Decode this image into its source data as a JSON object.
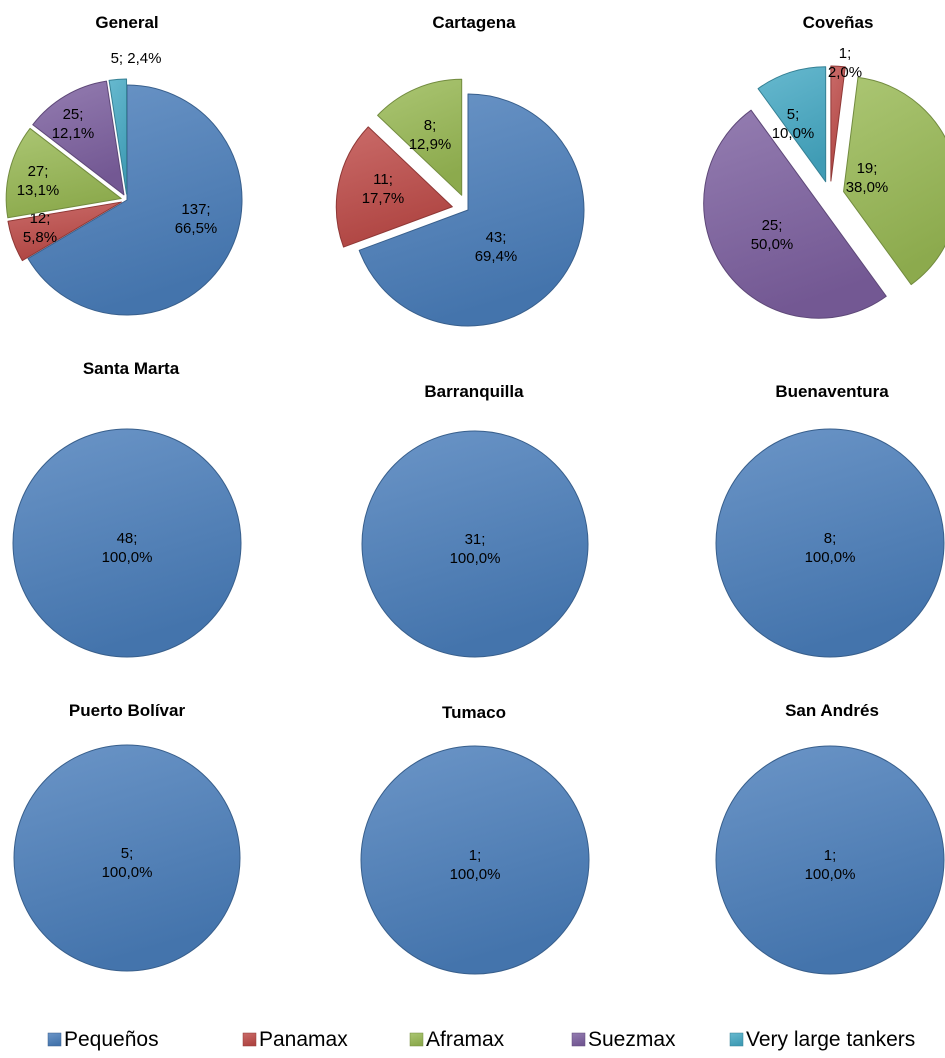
{
  "colors": {
    "Pequeños": "#4a7ebb",
    "Panamax": "#be4b48",
    "Aframax": "#98b954",
    "Suezmax": "#7d60a0",
    "Very large tankers": "#46aac5"
  },
  "legend": [
    "Pequeños",
    "Panamax",
    "Aframax",
    "Suezmax",
    "Very large tankers"
  ],
  "chart_data": [
    {
      "type": "pie",
      "title": "General",
      "slices": [
        {
          "category": "Pequeños",
          "value": 137,
          "label_value": "137;",
          "label_pct": "66,5%"
        },
        {
          "category": "Panamax",
          "value": 12,
          "label_value": "12;",
          "label_pct": "5,8%"
        },
        {
          "category": "Aframax",
          "value": 27,
          "label_value": "27;",
          "label_pct": "13,1%"
        },
        {
          "category": "Suezmax",
          "value": 25,
          "label_value": "25;",
          "label_pct": "12,1%"
        },
        {
          "category": "Very large tankers",
          "value": 5,
          "label_value": "5; 2,4%",
          "label_pct": ""
        }
      ]
    },
    {
      "type": "pie",
      "title": "Cartagena",
      "slices": [
        {
          "category": "Pequeños",
          "value": 43,
          "label_value": "43;",
          "label_pct": "69,4%"
        },
        {
          "category": "Panamax",
          "value": 11,
          "label_value": "11;",
          "label_pct": "17,7%"
        },
        {
          "category": "Aframax",
          "value": 8,
          "label_value": "8;",
          "label_pct": "12,9%"
        }
      ]
    },
    {
      "type": "pie",
      "title": "Coveñas",
      "slices": [
        {
          "category": "Panamax",
          "value": 1,
          "label_value": "1;",
          "label_pct": "2,0%"
        },
        {
          "category": "Aframax",
          "value": 19,
          "label_value": "19;",
          "label_pct": "38,0%"
        },
        {
          "category": "Suezmax",
          "value": 25,
          "label_value": "25;",
          "label_pct": "50,0%"
        },
        {
          "category": "Very large tankers",
          "value": 5,
          "label_value": "5;",
          "label_pct": "10,0%"
        }
      ]
    },
    {
      "type": "pie",
      "title": "Santa Marta",
      "slices": [
        {
          "category": "Pequeños",
          "value": 48,
          "label_value": "48;",
          "label_pct": "100,0%"
        }
      ]
    },
    {
      "type": "pie",
      "title": "Barranquilla",
      "slices": [
        {
          "category": "Pequeños",
          "value": 31,
          "label_value": "31;",
          "label_pct": "100,0%"
        }
      ]
    },
    {
      "type": "pie",
      "title": "Buenaventura",
      "slices": [
        {
          "category": "Pequeños",
          "value": 8,
          "label_value": "8;",
          "label_pct": "100,0%"
        }
      ]
    },
    {
      "type": "pie",
      "title": "Puerto Bolívar",
      "slices": [
        {
          "category": "Pequeños",
          "value": 5,
          "label_value": "5;",
          "label_pct": "100,0%"
        }
      ]
    },
    {
      "type": "pie",
      "title": "Tumaco",
      "slices": [
        {
          "category": "Pequeños",
          "value": 1,
          "label_value": "1;",
          "label_pct": "100,0%"
        }
      ]
    },
    {
      "type": "pie",
      "title": "San Andrés",
      "slices": [
        {
          "category": "Pequeños",
          "value": 1,
          "label_value": "1;",
          "label_pct": "100,0%"
        }
      ]
    }
  ]
}
